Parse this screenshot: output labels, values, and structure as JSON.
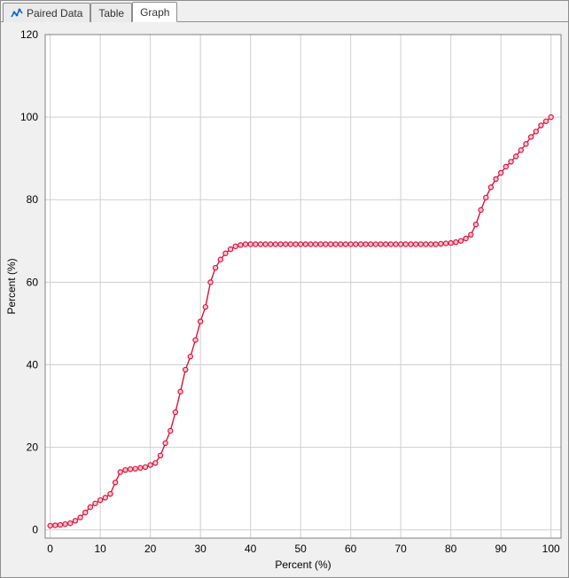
{
  "tabs": [
    {
      "label": "Paired Data",
      "has_icon": true
    },
    {
      "label": "Table",
      "has_icon": false
    },
    {
      "label": "Graph",
      "has_icon": false
    }
  ],
  "active_tab_index": 2,
  "chart": {
    "type": "line",
    "xlabel": "Percent (%)",
    "ylabel": "Percent (%)",
    "xlim": [
      -1,
      102
    ],
    "ylim": [
      -2,
      120
    ],
    "xtick_start": 0,
    "xtick_step": 10,
    "xtick_end": 100,
    "ytick_start": 0,
    "ytick_step": 20,
    "ytick_end": 120,
    "background_color": "#f0f0f0",
    "plot_background_color": "#ffffff",
    "grid_color": "#cfcfcf",
    "axis_color": "#808080",
    "label_fontsize": 12,
    "tick_fontsize": 12,
    "series": {
      "line_color": "#dc143c",
      "line_width": 1.4,
      "marker_edge_color": "#dc143c",
      "marker_fill_color": "#f7c5cf",
      "marker_radius": 2.6,
      "x": [
        0,
        1,
        2,
        3,
        4,
        5,
        6,
        7,
        8,
        9,
        10,
        11,
        12,
        13,
        14,
        15,
        16,
        17,
        18,
        19,
        20,
        21,
        22,
        23,
        24,
        25,
        26,
        27,
        28,
        29,
        30,
        31,
        32,
        33,
        34,
        35,
        36,
        37,
        38,
        39,
        40,
        41,
        42,
        43,
        44,
        45,
        46,
        47,
        48,
        49,
        50,
        51,
        52,
        53,
        54,
        55,
        56,
        57,
        58,
        59,
        60,
        61,
        62,
        63,
        64,
        65,
        66,
        67,
        68,
        69,
        70,
        71,
        72,
        73,
        74,
        75,
        76,
        77,
        78,
        79,
        80,
        81,
        82,
        83,
        84,
        85,
        86,
        87,
        88,
        89,
        90,
        91,
        92,
        93,
        94,
        95,
        96,
        97,
        98,
        99,
        100
      ],
      "y": [
        1.0,
        1.1,
        1.2,
        1.4,
        1.6,
        2.2,
        3.0,
        4.2,
        5.5,
        6.4,
        7.2,
        7.8,
        8.7,
        11.5,
        14.0,
        14.5,
        14.7,
        14.8,
        15.0,
        15.2,
        15.7,
        16.2,
        18.0,
        21.0,
        24.0,
        28.5,
        33.5,
        38.8,
        42.0,
        46.0,
        50.5,
        54.0,
        60.0,
        63.5,
        65.5,
        67.0,
        68.0,
        68.7,
        69.0,
        69.2,
        69.2,
        69.2,
        69.2,
        69.2,
        69.2,
        69.2,
        69.2,
        69.2,
        69.2,
        69.2,
        69.2,
        69.2,
        69.2,
        69.2,
        69.2,
        69.2,
        69.2,
        69.2,
        69.2,
        69.2,
        69.2,
        69.2,
        69.2,
        69.2,
        69.2,
        69.2,
        69.2,
        69.2,
        69.2,
        69.2,
        69.2,
        69.2,
        69.2,
        69.2,
        69.2,
        69.2,
        69.2,
        69.2,
        69.3,
        69.4,
        69.5,
        69.7,
        70.0,
        70.6,
        71.5,
        74.0,
        77.5,
        80.5,
        83.0,
        85.0,
        86.5,
        88.0,
        89.2,
        90.5,
        92.0,
        93.5,
        95.2,
        96.5,
        98.0,
        99.0,
        100.0
      ]
    }
  }
}
